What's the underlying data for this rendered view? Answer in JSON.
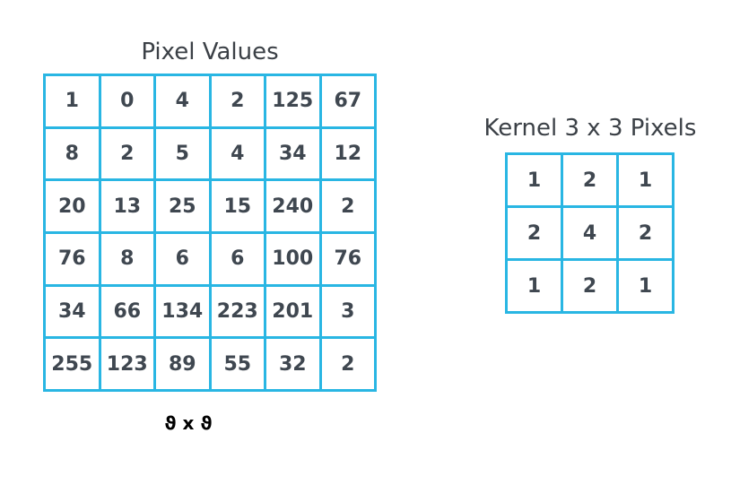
{
  "pixel_values": {
    "title": "Pixel Values",
    "rows": [
      [
        "1",
        "0",
        "4",
        "2",
        "125",
        "67"
      ],
      [
        "8",
        "2",
        "5",
        "4",
        "34",
        "12"
      ],
      [
        "20",
        "13",
        "25",
        "15",
        "240",
        "2"
      ],
      [
        "76",
        "8",
        "6",
        "6",
        "100",
        "76"
      ],
      [
        "34",
        "66",
        "134",
        "223",
        "201",
        "3"
      ],
      [
        "255",
        "123",
        "89",
        "55",
        "32",
        "2"
      ]
    ]
  },
  "kernel": {
    "title": "Kernel 3 x 3 Pixels",
    "rows": [
      [
        "1",
        "2",
        "1"
      ],
      [
        "2",
        "4",
        "2"
      ],
      [
        "1",
        "2",
        "1"
      ]
    ]
  },
  "dimensions_label": "ϑ x ϑ",
  "colors": {
    "grid_border": "#29b6e3",
    "cell_text": "#3f4750",
    "title_text": "#3b4046"
  }
}
